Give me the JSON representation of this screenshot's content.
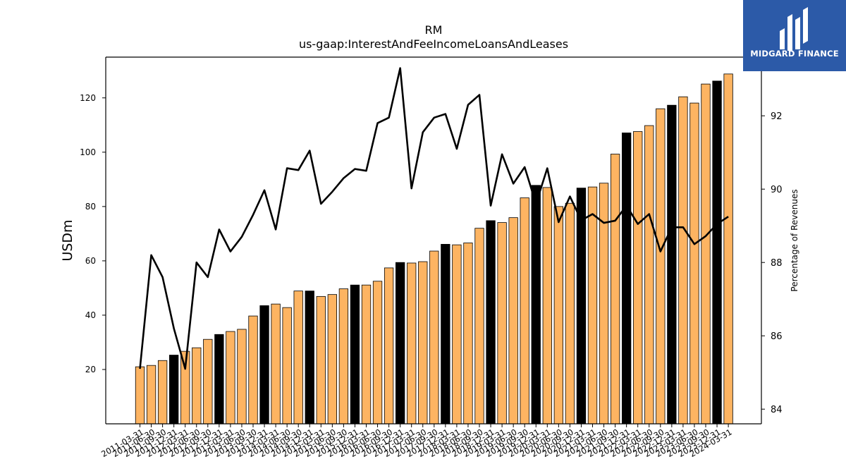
{
  "chart_data": {
    "type": "bar",
    "title": "RM",
    "subtitle": "us-gaap:InterestAndFeeIncomeLoansAndLeases",
    "ylabel": "USDm",
    "y2label": "Percentage of Revenues",
    "ylim": [
      0,
      135
    ],
    "y2lim": [
      83.6,
      93.6
    ],
    "yticks": [
      20,
      40,
      60,
      80,
      100,
      120
    ],
    "y2ticks": [
      84,
      86,
      88,
      90,
      92
    ],
    "categories": [
      "2011-03-31",
      "2011-06-30",
      "2011-09-30",
      "2011-12-31",
      "2012-03-31",
      "2012-06-30",
      "2012-09-30",
      "2012-12-31",
      "2013-03-31",
      "2013-06-30",
      "2013-09-30",
      "2013-12-31",
      "2014-03-31",
      "2014-06-30",
      "2014-09-30",
      "2014-12-31",
      "2015-03-31",
      "2015-06-30",
      "2015-09-30",
      "2015-12-31",
      "2016-03-31",
      "2016-06-30",
      "2016-09-30",
      "2016-12-31",
      "2017-03-31",
      "2017-06-30",
      "2017-09-30",
      "2017-12-31",
      "2018-03-31",
      "2018-06-30",
      "2018-09-30",
      "2018-12-31",
      "2019-03-31",
      "2019-06-30",
      "2019-09-30",
      "2019-12-31",
      "2020-03-31",
      "2020-06-30",
      "2020-09-30",
      "2020-12-31",
      "2021-03-31",
      "2021-06-30",
      "2021-09-30",
      "2021-12-31",
      "2022-03-31",
      "2022-06-30",
      "2022-09-30",
      "2022-12-31",
      "2023-03-31",
      "2023-06-30",
      "2023-09-30",
      "2023-12-31",
      "2024-03-31"
    ],
    "series": [
      {
        "kind": "bar",
        "axis": "left",
        "values": [
          21.0,
          21.5,
          23.3,
          25.3,
          26.7,
          28.0,
          31.1,
          32.9,
          34.0,
          34.8,
          39.7,
          43.5,
          44.1,
          42.8,
          48.9,
          48.9,
          46.9,
          47.6,
          49.7,
          51.1,
          51.1,
          52.5,
          57.4,
          59.4,
          59.2,
          59.7,
          63.6,
          66.1,
          65.9,
          66.6,
          72.0,
          74.8,
          74.1,
          75.9,
          83.2,
          87.8,
          87.0,
          80.0,
          81.2,
          86.8,
          87.2,
          88.6,
          99.3,
          107.1,
          107.6,
          109.8,
          116.0,
          117.3,
          120.4,
          118.1,
          125.1,
          126.2,
          128.8
        ],
        "highlight": [
          false,
          false,
          false,
          true,
          false,
          false,
          false,
          true,
          false,
          false,
          false,
          true,
          false,
          false,
          false,
          true,
          false,
          false,
          false,
          true,
          false,
          false,
          false,
          true,
          false,
          false,
          false,
          true,
          false,
          false,
          false,
          true,
          false,
          false,
          false,
          true,
          false,
          false,
          false,
          true,
          false,
          false,
          false,
          true,
          false,
          false,
          false,
          true,
          false,
          false,
          false,
          true,
          false
        ],
        "color": "#fdb462",
        "highlight_color": "#000000"
      },
      {
        "kind": "line",
        "axis": "right",
        "values": [
          85.1,
          88.2,
          87.6,
          86.2,
          85.1,
          88.0,
          87.6,
          88.9,
          88.3,
          88.7,
          89.3,
          89.97,
          88.9,
          90.57,
          90.52,
          91.05,
          89.6,
          89.93,
          90.3,
          90.55,
          90.5,
          91.8,
          91.95,
          93.3,
          90.02,
          91.55,
          91.95,
          92.05,
          91.1,
          92.3,
          92.57,
          89.55,
          90.95,
          90.15,
          90.6,
          89.6,
          90.57,
          89.1,
          89.8,
          89.15,
          89.32,
          89.08,
          89.14,
          89.55,
          89.05,
          89.32,
          88.3,
          88.96,
          88.96,
          88.5,
          88.72,
          89.05,
          89.25
        ],
        "color": "#000000"
      }
    ],
    "grid": false,
    "legend": "none"
  },
  "brand": {
    "name": "MIDGARD FINANCE",
    "bg_color": "#2c5aa8",
    "icon": "midgard-logo-icon"
  }
}
